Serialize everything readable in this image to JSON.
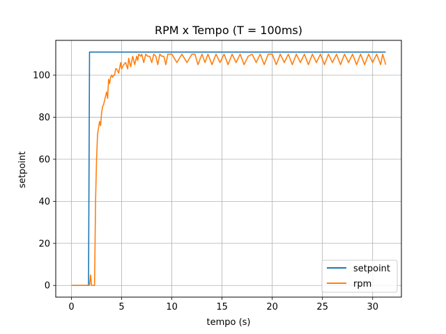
{
  "chart_data": {
    "type": "line",
    "title": "RPM x Tempo (T = 100ms)",
    "xlabel": "tempo (s)",
    "ylabel": "setpoint",
    "xlim": [
      -1.565,
      32.865
    ],
    "ylim": [
      -5.55,
      116.55
    ],
    "xticks": [
      0,
      5,
      10,
      15,
      20,
      25,
      30
    ],
    "yticks": [
      0,
      20,
      40,
      60,
      80,
      100
    ],
    "grid": true,
    "legend": "lower-right",
    "series": [
      {
        "name": "setpoint",
        "color": "#1f77b4",
        "x": [
          0,
          1.7,
          1.8,
          31.3
        ],
        "y": [
          0,
          0,
          111,
          111
        ]
      },
      {
        "name": "rpm",
        "color": "#ff7f0e",
        "x": [
          0,
          1.8,
          1.9,
          2.0,
          2.1,
          2.3,
          2.4,
          2.5,
          2.6,
          2.8,
          2.9,
          3.0,
          3.1,
          3.2,
          3.3,
          3.4,
          3.5,
          3.6,
          3.7,
          3.8,
          3.9,
          4.0,
          4.1,
          4.2,
          4.3,
          4.4,
          4.5,
          4.7,
          4.9,
          5.0,
          5.2,
          5.4,
          5.6,
          5.7,
          5.9,
          6.1,
          6.3,
          6.5,
          6.6,
          6.7,
          6.9,
          7.0,
          7.2,
          7.4,
          7.6,
          7.8,
          8.0,
          8.2,
          8.4,
          8.6,
          8.8,
          9.0,
          9.2,
          9.4,
          9.6,
          9.8,
          10.0,
          10.5,
          11.0,
          11.5,
          12.0,
          12.3,
          12.6,
          13.0,
          13.3,
          13.6,
          14.0,
          14.4,
          14.8,
          15.2,
          15.6,
          16.0,
          16.4,
          16.8,
          17.2,
          17.6,
          18.0,
          18.4,
          18.8,
          19.2,
          19.6,
          20.0,
          20.4,
          20.8,
          21.2,
          21.6,
          22.0,
          22.4,
          22.8,
          23.2,
          23.6,
          24.0,
          24.4,
          24.8,
          25.2,
          25.6,
          26.0,
          26.4,
          26.8,
          27.2,
          27.6,
          28.0,
          28.4,
          28.8,
          29.2,
          29.6,
          30.0,
          30.4,
          30.8,
          31.0,
          31.3
        ],
        "y": [
          0,
          0,
          5,
          0,
          0,
          0,
          40,
          60,
          72,
          78,
          76,
          82,
          85,
          86,
          88,
          90,
          92,
          89,
          98,
          96,
          99,
          100,
          99,
          100,
          100,
          103,
          103,
          101,
          106,
          103,
          105,
          106,
          103,
          108,
          104,
          109,
          105,
          109,
          107,
          110,
          109,
          110,
          106,
          110,
          109,
          109,
          106,
          110,
          109,
          105,
          110,
          109,
          109,
          105,
          110,
          110,
          110,
          106,
          110,
          106,
          110,
          110,
          105,
          110,
          106,
          110,
          105,
          110,
          106,
          110,
          105,
          110,
          106,
          110,
          105,
          109,
          110,
          106,
          110,
          105,
          110,
          110,
          105,
          110,
          106,
          110,
          105,
          110,
          106,
          110,
          105,
          110,
          106,
          110,
          105,
          110,
          106,
          110,
          105,
          110,
          106,
          110,
          105,
          110,
          105,
          110,
          106,
          110,
          105,
          110,
          105
        ]
      }
    ]
  }
}
